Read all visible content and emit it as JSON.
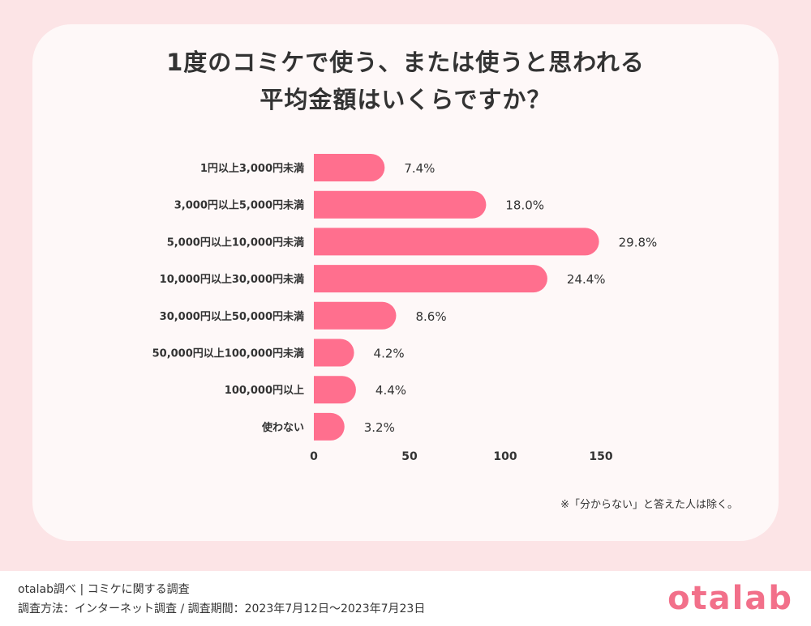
{
  "title_lines": [
    "1度のコミケで使う、または使うと思われる",
    "平均金額はいくらですか？"
  ],
  "note": "※「分からない」と答えた人は除く。",
  "footer": {
    "line1": "otalab調べ | コミケに関する調査",
    "line2": "調査方法：インターネット調査 / 調査期間：2023年7月12日〜2023年7月23日"
  },
  "logo": "otalab",
  "colors": {
    "bar": "#ff6f8e",
    "background": "#fce4e6",
    "card": "#fef8f8",
    "logo": "#f2708a"
  },
  "chart_data": {
    "type": "bar",
    "orientation": "horizontal",
    "categories": [
      "1円以上3,000円未満",
      "3,000円以上5,000円未満",
      "5,000円以上10,000円未満",
      "10,000円以上30,000円未満",
      "30,000円以上50,000円未満",
      "50,000円以上100,000円未満",
      "100,000円以上",
      "使わない"
    ],
    "values": [
      37,
      90,
      149,
      122,
      43,
      21,
      22,
      16
    ],
    "labels": [
      "7.4%",
      "18.0%",
      "29.8%",
      "24.4%",
      "8.6%",
      "4.2%",
      "4.4%",
      "3.2%"
    ],
    "xticks": [
      0,
      50,
      100,
      150
    ],
    "xlim": [
      0,
      150
    ],
    "grid": false,
    "legend": "none"
  }
}
